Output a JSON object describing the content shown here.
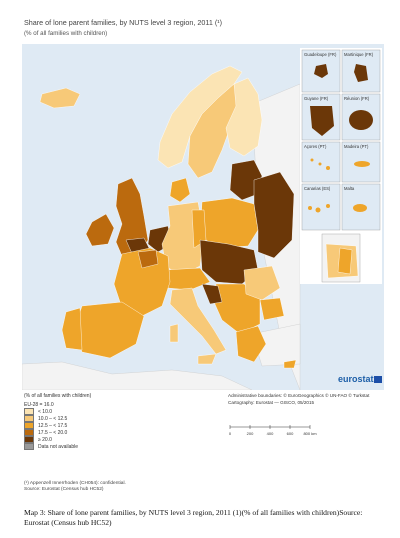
{
  "title": "Share of lone parent families, by NUTS level 3 region, 2011 (¹)",
  "subtitle": "(% of all families with children)",
  "insets": [
    {
      "name": "Guadeloupe (FR)"
    },
    {
      "name": "Martinique (FR)"
    },
    {
      "name": "Guyane (FR)"
    },
    {
      "name": "Réunion (FR)"
    },
    {
      "name": "Açores (PT)"
    },
    {
      "name": "Madeira (PT)"
    },
    {
      "name": "Canarias (ES)"
    },
    {
      "name": "Malta"
    },
    {
      "name": ""
    }
  ],
  "legend": {
    "title": "(% of all families with children)",
    "eu_value": "EU-28 = 16.0",
    "classes": [
      {
        "label": "< 10.0",
        "color": "#fbe4b4"
      },
      {
        "label": "10.0 – < 12.5",
        "color": "#f7c978"
      },
      {
        "label": "12.5 – < 17.5",
        "color": "#eea52a"
      },
      {
        "label": "17.5 – < 20.0",
        "color": "#bb6a0e"
      },
      {
        "label": "≥ 20.0",
        "color": "#6b3708"
      },
      {
        "label": "Data not available",
        "color": "#9a9a9a"
      }
    ]
  },
  "admin": {
    "line1": "Administrative boundaries: © EuroGeographics © UN-FAO © Turkstat",
    "line2": "Cartography: Eurostat — GISCO, 05/2015"
  },
  "scale_labels": [
    "0",
    "200",
    "400",
    "600",
    "800 km"
  ],
  "footnote1": "(¹) Appenzell Innerrhoden (CH054): confidential.",
  "footnote2": "Source: Eurostat (Census hub HC52)",
  "logo_text": "eurostat",
  "caption": "Map 3: Share of lone parent families, by NUTS level 3 region, 2011 (1)(% of all families with children)Source: Eurostat (Census hub HC52)",
  "colors": {
    "sea": "#dfeaf4",
    "non_eu": "#f3f3f3"
  }
}
